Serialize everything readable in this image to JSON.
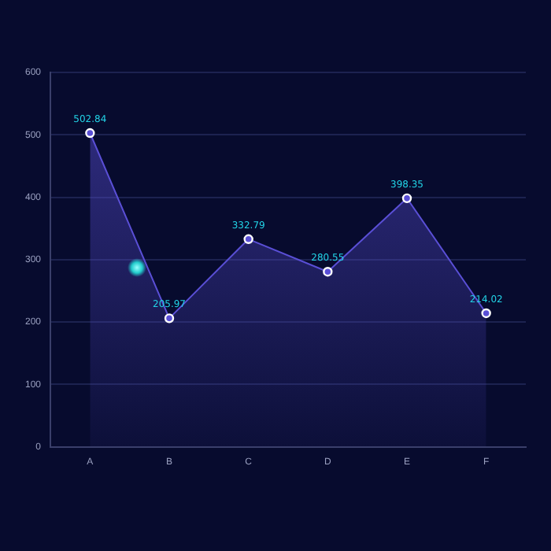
{
  "chart_data": {
    "type": "area",
    "categories": [
      "A",
      "B",
      "C",
      "D",
      "E",
      "F"
    ],
    "series": [
      {
        "color": "#5a4fd6",
        "values": [
          502.84,
          205.97,
          332.79,
          280.55,
          398.35,
          214.02
        ]
      }
    ],
    "ylim": [
      0,
      600
    ],
    "yticks": [
      0,
      100,
      200,
      300,
      400,
      500,
      600
    ],
    "grid": "y",
    "legend": false,
    "marker": "circle",
    "data_labels": true
  }
}
